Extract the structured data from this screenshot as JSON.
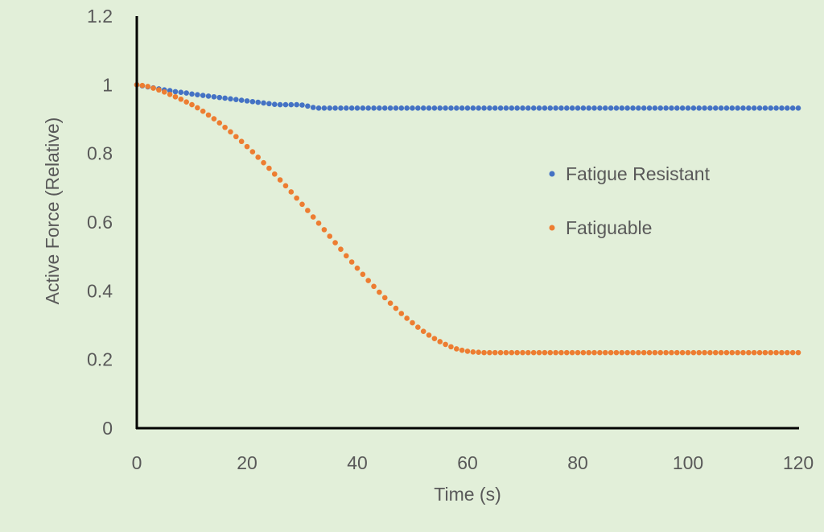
{
  "chart_data": {
    "type": "scatter",
    "title": "",
    "xlabel": "Time (s)",
    "ylabel": "Active Force (Relative)",
    "xlim": [
      0,
      120
    ],
    "ylim": [
      0,
      1.2
    ],
    "xticks": [
      "0",
      "20",
      "40",
      "60",
      "80",
      "100",
      "120"
    ],
    "yticks": [
      "0",
      "0.2",
      "0.4",
      "0.6",
      "0.8",
      "1",
      "1.2"
    ],
    "grid": false,
    "legend_position": "right-center",
    "x_start": 0,
    "x_step": 1,
    "series": [
      {
        "name": "Fatigue Resistant",
        "color": "#4472c4",
        "values": [
          1.0,
          0.997,
          0.994,
          0.991,
          0.988,
          0.985,
          0.983,
          0.98,
          0.978,
          0.976,
          0.973,
          0.971,
          0.969,
          0.967,
          0.965,
          0.963,
          0.961,
          0.959,
          0.957,
          0.955,
          0.953,
          0.951,
          0.949,
          0.947,
          0.945,
          0.943,
          0.942,
          0.942,
          0.942,
          0.942,
          0.941,
          0.938,
          0.934,
          0.932,
          0.932,
          0.932,
          0.932,
          0.932,
          0.932,
          0.932,
          0.932,
          0.932,
          0.932,
          0.932,
          0.932,
          0.932,
          0.932,
          0.932,
          0.932,
          0.932,
          0.932,
          0.932,
          0.932,
          0.932,
          0.932,
          0.932,
          0.932,
          0.932,
          0.932,
          0.932,
          0.932,
          0.932,
          0.932,
          0.932,
          0.932,
          0.932,
          0.932,
          0.932,
          0.932,
          0.932,
          0.932,
          0.932,
          0.932,
          0.932,
          0.932,
          0.932,
          0.932,
          0.932,
          0.932,
          0.932,
          0.932,
          0.932,
          0.932,
          0.932,
          0.932,
          0.932,
          0.932,
          0.932,
          0.932,
          0.932,
          0.932,
          0.932,
          0.932,
          0.932,
          0.932,
          0.932,
          0.932,
          0.932,
          0.932,
          0.932,
          0.932,
          0.932,
          0.932,
          0.932,
          0.932,
          0.932,
          0.932,
          0.932,
          0.932,
          0.932,
          0.932,
          0.932,
          0.932,
          0.932,
          0.932,
          0.932,
          0.932,
          0.932,
          0.932,
          0.932,
          0.932
        ]
      },
      {
        "name": "Fatiguable",
        "color": "#ed7d31",
        "values": [
          1.0,
          0.998,
          0.995,
          0.99,
          0.985,
          0.979,
          0.972,
          0.965,
          0.958,
          0.95,
          0.942,
          0.933,
          0.923,
          0.912,
          0.901,
          0.889,
          0.876,
          0.863,
          0.849,
          0.835,
          0.82,
          0.805,
          0.789,
          0.773,
          0.757,
          0.74,
          0.723,
          0.706,
          0.688,
          0.67,
          0.652,
          0.634,
          0.615,
          0.597,
          0.578,
          0.559,
          0.54,
          0.521,
          0.502,
          0.484,
          0.466,
          0.448,
          0.43,
          0.413,
          0.396,
          0.38,
          0.364,
          0.349,
          0.334,
          0.32,
          0.307,
          0.294,
          0.282,
          0.271,
          0.261,
          0.252,
          0.244,
          0.237,
          0.231,
          0.227,
          0.224,
          0.222,
          0.221,
          0.22,
          0.22,
          0.22,
          0.22,
          0.22,
          0.22,
          0.22,
          0.22,
          0.22,
          0.22,
          0.22,
          0.22,
          0.22,
          0.22,
          0.22,
          0.22,
          0.22,
          0.22,
          0.22,
          0.22,
          0.22,
          0.22,
          0.22,
          0.22,
          0.22,
          0.22,
          0.22,
          0.22,
          0.22,
          0.22,
          0.22,
          0.22,
          0.22,
          0.22,
          0.22,
          0.22,
          0.22,
          0.22,
          0.22,
          0.22,
          0.22,
          0.22,
          0.22,
          0.22,
          0.22,
          0.22,
          0.22,
          0.22,
          0.22,
          0.22,
          0.22,
          0.22,
          0.22,
          0.22,
          0.22,
          0.22,
          0.22,
          0.22
        ]
      }
    ]
  }
}
